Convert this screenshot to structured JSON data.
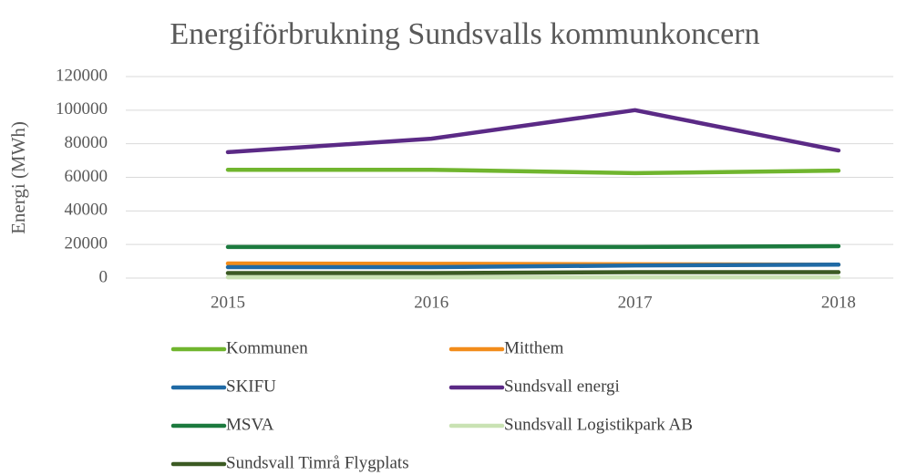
{
  "chart_data": {
    "type": "line",
    "title": "Energiförbrukning Sundsvalls kommunkoncern",
    "y_label": "Energi (MWh)",
    "categories": [
      "2015",
      "2016",
      "2017",
      "2018"
    ],
    "series": [
      {
        "name": "Kommunen",
        "color": "#70b52e",
        "values": [
          64500,
          64500,
          62500,
          64000
        ]
      },
      {
        "name": "Mitthem",
        "color": "#f28c1a",
        "values": [
          8700,
          8500,
          8200,
          8000
        ]
      },
      {
        "name": "SKIFU",
        "color": "#1f6aa5",
        "values": [
          6500,
          6500,
          7500,
          8000
        ]
      },
      {
        "name": "Sundsvall energi",
        "color": "#5b2a86",
        "values": [
          75000,
          83000,
          100000,
          76000
        ]
      },
      {
        "name": "MSVA",
        "color": "#1c7a3e",
        "values": [
          18500,
          18500,
          18500,
          19000
        ]
      },
      {
        "name": "Sundsvall Logistikpark AB",
        "color": "#c9e2b3",
        "values": [
          500,
          500,
          500,
          500
        ]
      },
      {
        "name": "Sundsvall Timrå Flygplats",
        "color": "#3b5a23",
        "values": [
          3000,
          3000,
          3500,
          3500
        ]
      }
    ],
    "ylim": [
      0,
      120000
    ],
    "yticks": [
      0,
      20000,
      40000,
      60000,
      80000,
      100000,
      120000
    ],
    "grid": true
  }
}
